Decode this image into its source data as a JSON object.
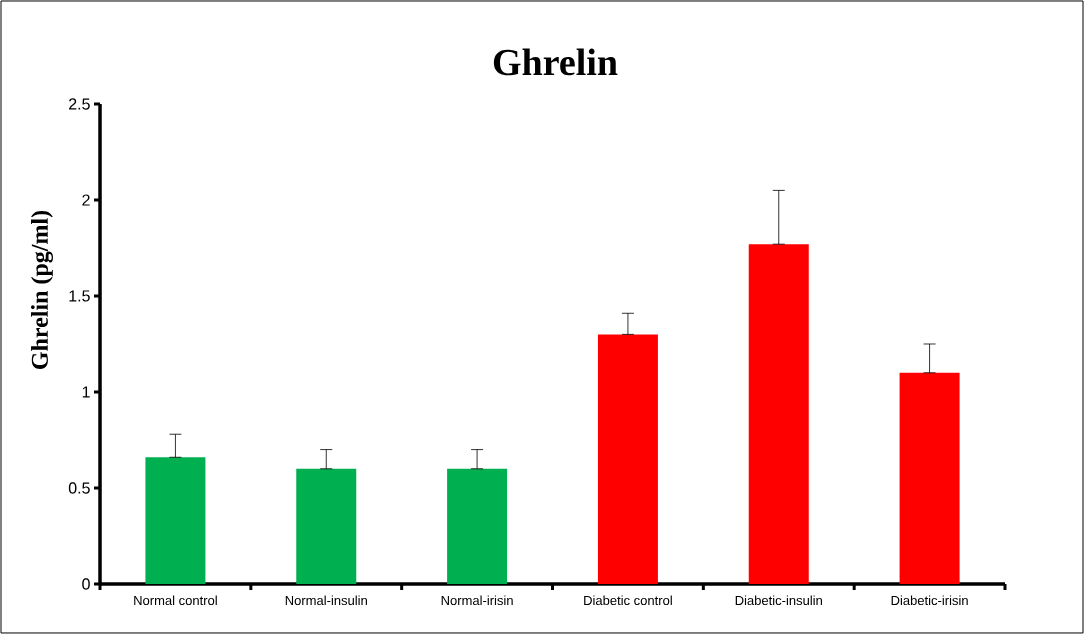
{
  "chart_data": {
    "type": "bar",
    "title": "Ghrelin",
    "ylabel": "Ghrelin  (pg/ml)",
    "categories": [
      "Normal control",
      "Normal-insulin",
      "Normal-irisin",
      "Diabetic control",
      "Diabetic-insulin",
      "Diabetic-irisin"
    ],
    "values": [
      0.66,
      0.6,
      0.6,
      1.3,
      1.77,
      1.1
    ],
    "errors": [
      [
        0.66,
        0.78
      ],
      [
        0.6,
        0.7
      ],
      [
        0.6,
        0.7
      ],
      [
        1.3,
        1.41
      ],
      [
        1.77,
        2.05
      ],
      [
        1.1,
        1.25
      ]
    ],
    "colors": [
      "#00b050",
      "#00b050",
      "#00b050",
      "#ff0000",
      "#ff0000",
      "#ff0000"
    ],
    "ylim": [
      0,
      2.5
    ],
    "yticks": [
      0,
      0.5,
      1,
      1.5,
      2,
      2.5
    ],
    "grid": false
  }
}
